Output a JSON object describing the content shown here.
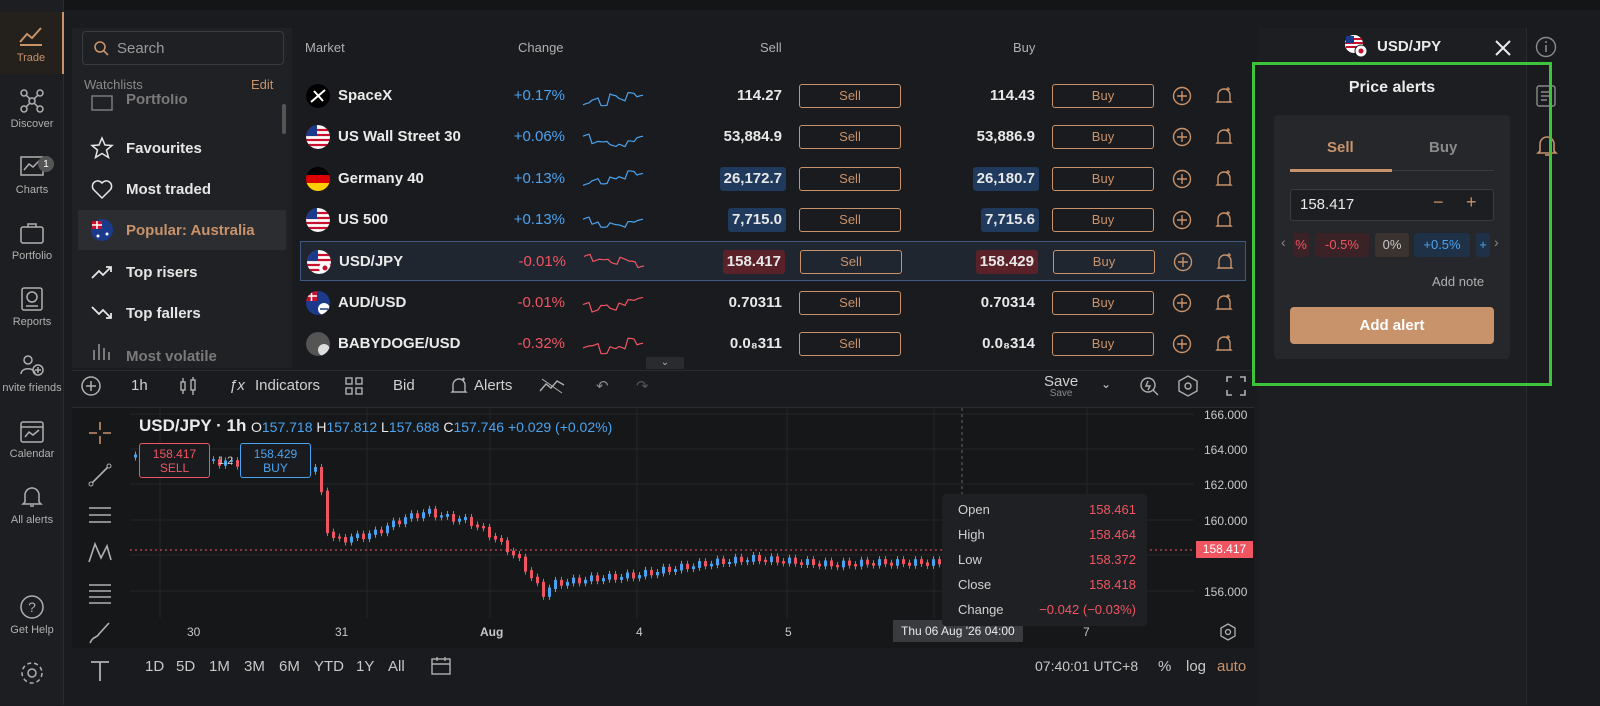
{
  "nav": {
    "items": [
      {
        "label": "Trade",
        "icon": "trade-icon"
      },
      {
        "label": "Discover",
        "icon": "discover-icon"
      },
      {
        "label": "Charts",
        "icon": "charts-icon",
        "badge": "1"
      },
      {
        "label": "Portfolio",
        "icon": "portfolio-icon"
      },
      {
        "label": "Reports",
        "icon": "reports-icon"
      },
      {
        "label": "nvite friends",
        "icon": "invite-icon"
      },
      {
        "label": "Calendar",
        "icon": "calendar-icon"
      },
      {
        "label": "All alerts",
        "icon": "bell-icon"
      },
      {
        "label": "Get Help",
        "icon": "help-icon"
      }
    ]
  },
  "watchlist": {
    "search_placeholder": "Search",
    "header": "Watchlists",
    "edit": "Edit",
    "items": [
      "Portfolio",
      "Favourites",
      "Most traded",
      "Popular: Australia",
      "Top risers",
      "Top fallers",
      "Most volatile"
    ]
  },
  "table": {
    "headers": {
      "market": "Market",
      "change": "Change",
      "sell": "Sell",
      "buy": "Buy"
    },
    "sell_label": "Sell",
    "buy_label": "Buy",
    "rows": [
      {
        "name": "SpaceX",
        "change": "+0.17%",
        "sell": "114.27",
        "buy": "114.43"
      },
      {
        "name": "US Wall Street 30",
        "change": "+0.06%",
        "sell": "53,884.9",
        "buy": "53,886.9"
      },
      {
        "name": "Germany 40",
        "change": "+0.13%",
        "sell": "26,172.7",
        "buy": "26,180.7"
      },
      {
        "name": "US 500",
        "change": "+0.13%",
        "sell": "7,715.0",
        "buy": "7,715.6"
      },
      {
        "name": "USD/JPY",
        "change": "-0.01%",
        "sell": "158.417",
        "buy": "158.429"
      },
      {
        "name": "AUD/USD",
        "change": "-0.01%",
        "sell": "0.70311",
        "buy": "0.70314"
      },
      {
        "name": "BABYDOGE/USD",
        "change": "-0.32%",
        "sell": "0.0₈311",
        "buy": "0.0₈314"
      }
    ]
  },
  "chart_toolbar": {
    "interval": "1h",
    "indicators": "Indicators",
    "bid": "Bid",
    "alerts": "Alerts",
    "save": "Save",
    "save_sub": "Save"
  },
  "chart": {
    "symbol": "USD/JPY · 1h",
    "o_label": "O",
    "o": "157.718",
    "h_label": "H",
    "h": "157.812",
    "l_label": "L",
    "l": "157.688",
    "c_label": "C",
    "c": "157.746",
    "delta": "+0.029 (+0.02%)",
    "sell_price": "158.417",
    "sell_label": "SELL",
    "buy_price": "158.429",
    "buy_label": "BUY",
    "spread": "1.2",
    "current_price_label": "158.417",
    "x_ticks": [
      "30",
      "31",
      "Aug",
      "4",
      "5",
      "7"
    ],
    "y_ticks": [
      "166.000",
      "164.000",
      "162.000",
      "160.000",
      "156.000"
    ],
    "crosshair_date": "Thu 06 Aug '26   04:00",
    "ohlc": [
      {
        "label": "Open",
        "value": "158.461"
      },
      {
        "label": "High",
        "value": "158.464"
      },
      {
        "label": "Low",
        "value": "158.372"
      },
      {
        "label": "Close",
        "value": "158.418"
      },
      {
        "label": "Change",
        "value": "−0.042 (−0.03%)"
      }
    ]
  },
  "bottom_bar": {
    "ranges": [
      "1D",
      "5D",
      "1M",
      "3M",
      "6M",
      "YTD",
      "1Y",
      "All"
    ],
    "time": "07:40:01 UTC+8",
    "pct": "%",
    "log": "log",
    "auto": "auto"
  },
  "right_panel": {
    "symbol": "USD/JPY",
    "title": "Price alerts",
    "tab_sell": "Sell",
    "tab_buy": "Buy",
    "price_value": "158.417",
    "chips": [
      "%",
      "-0.5%",
      "0%",
      "+0.5%",
      "+"
    ],
    "add_note": "Add note",
    "add_alert": "Add alert"
  },
  "colors": {
    "accent": "#c8926a",
    "positive": "#4aa3f0",
    "negative": "#f05562",
    "highlight_box": "#3ec43a"
  }
}
